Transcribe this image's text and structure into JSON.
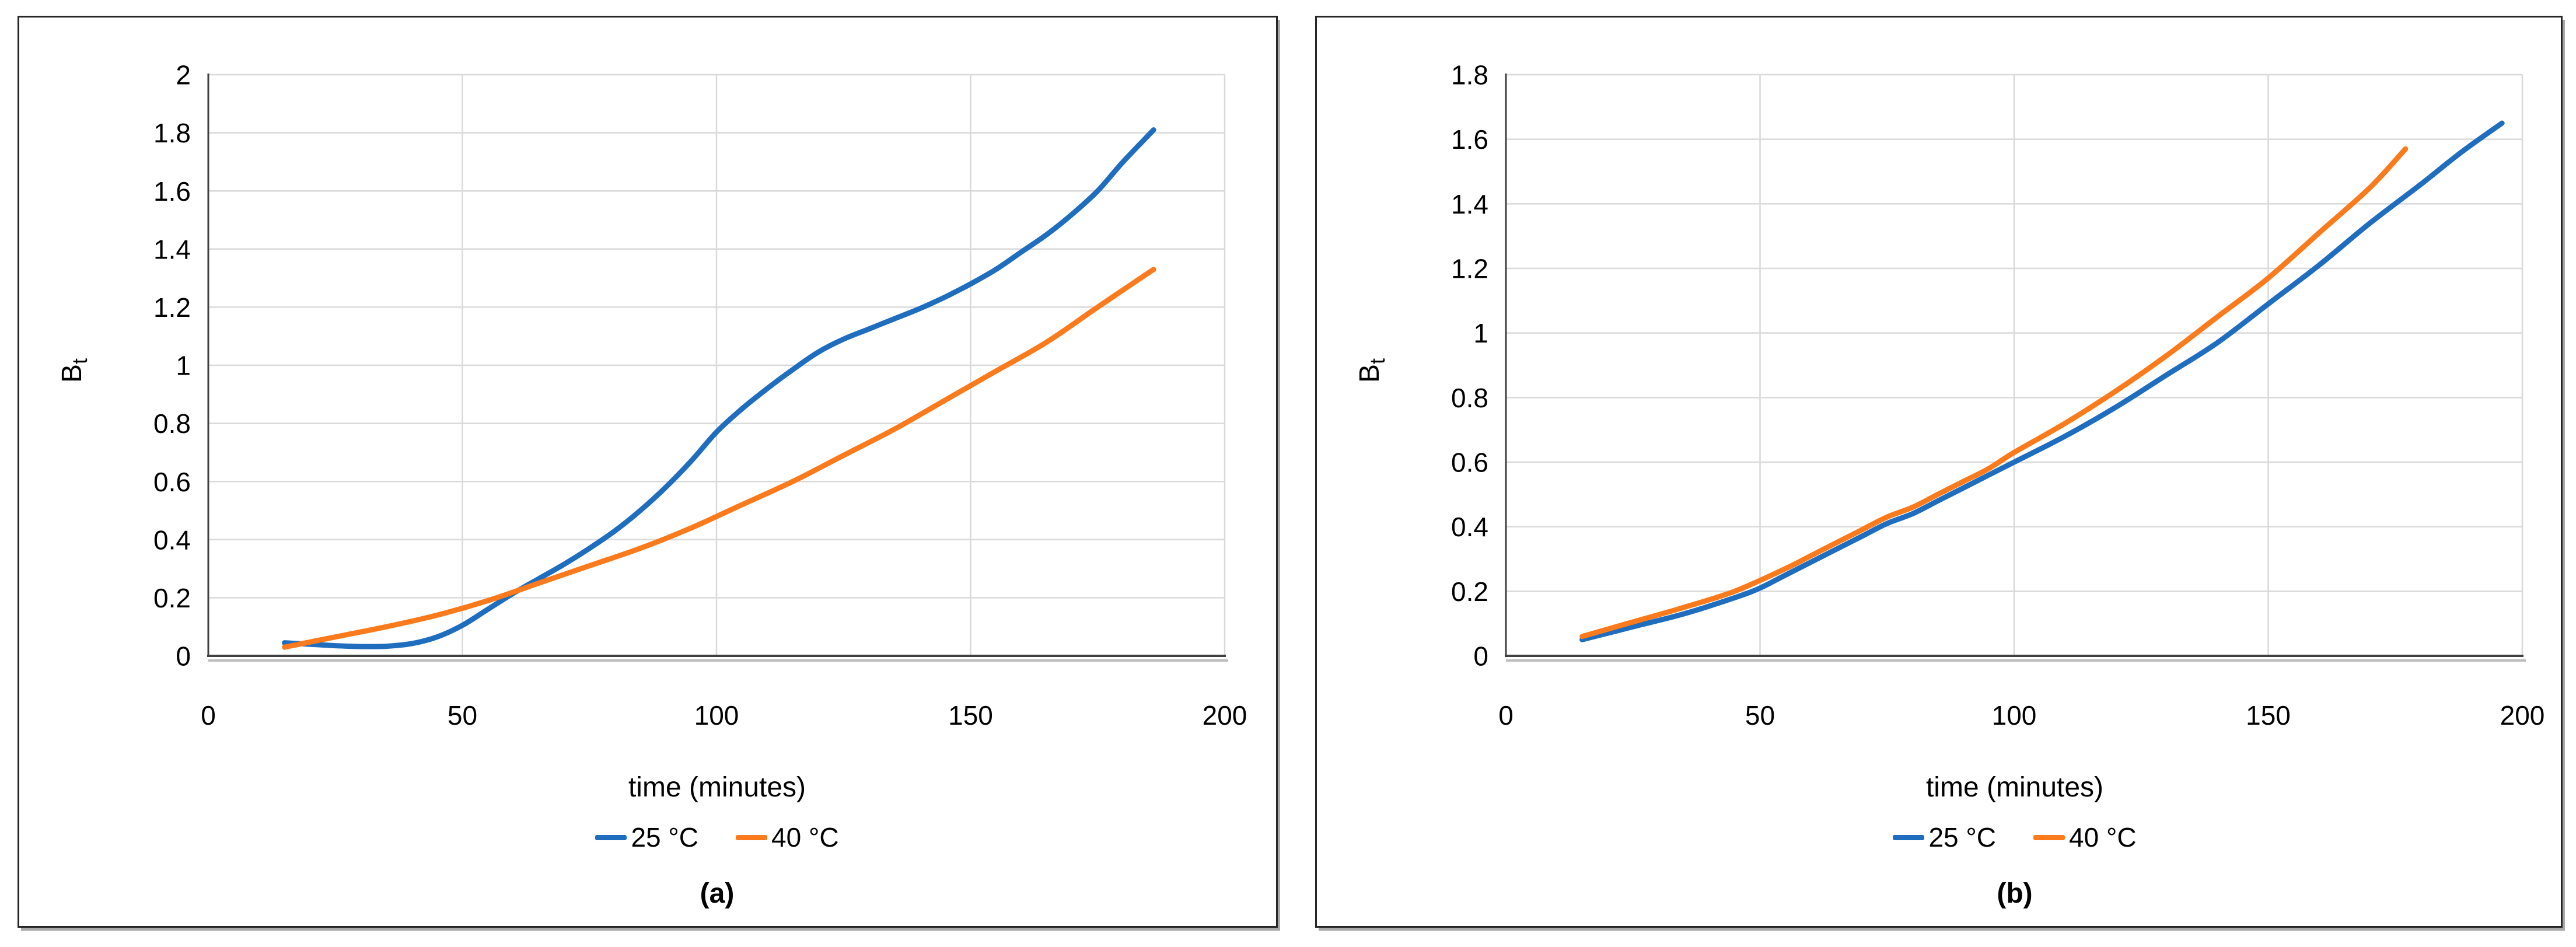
{
  "figure": {
    "background": "#ffffff",
    "panel_border_color": "#262626",
    "gridline_color": "#d9d9d9",
    "axis_color": "#404040",
    "axis_shadow_color": "#bdbdbd",
    "series_blue": "#1e6dbf",
    "series_orange": "#fa7a1c"
  },
  "chart_data": [
    {
      "type": "line",
      "panel_label": "(a)",
      "title": "",
      "xlabel": "time (minutes)",
      "ylabel_main": "B",
      "ylabel_sub": "t",
      "xlim": [
        0,
        200
      ],
      "ylim": [
        0,
        2
      ],
      "x_ticks": [
        0,
        50,
        100,
        150,
        200
      ],
      "y_ticks": [
        0,
        0.2,
        0.4,
        0.6,
        0.8,
        1,
        1.2,
        1.4,
        1.6,
        1.8,
        2
      ],
      "grid": true,
      "legend_position": "bottom",
      "series": [
        {
          "name": "25 °C",
          "color": "#1e6dbf",
          "points": [
            [
              15,
              0.045
            ],
            [
              20,
              0.04
            ],
            [
              25,
              0.035
            ],
            [
              30,
              0.032
            ],
            [
              35,
              0.033
            ],
            [
              40,
              0.042
            ],
            [
              45,
              0.065
            ],
            [
              50,
              0.105
            ],
            [
              55,
              0.16
            ],
            [
              60,
              0.215
            ],
            [
              65,
              0.265
            ],
            [
              70,
              0.315
            ],
            [
              75,
              0.37
            ],
            [
              80,
              0.43
            ],
            [
              85,
              0.5
            ],
            [
              90,
              0.58
            ],
            [
              95,
              0.67
            ],
            [
              100,
              0.77
            ],
            [
              105,
              0.85
            ],
            [
              110,
              0.92
            ],
            [
              115,
              0.985
            ],
            [
              120,
              1.045
            ],
            [
              125,
              1.09
            ],
            [
              130,
              1.125
            ],
            [
              135,
              1.16
            ],
            [
              140,
              1.195
            ],
            [
              145,
              1.235
            ],
            [
              150,
              1.28
            ],
            [
              155,
              1.33
            ],
            [
              160,
              1.39
            ],
            [
              165,
              1.45
            ],
            [
              170,
              1.52
            ],
            [
              175,
              1.6
            ],
            [
              180,
              1.7
            ],
            [
              186,
              1.81
            ]
          ]
        },
        {
          "name": "40 °C",
          "color": "#fa7a1c",
          "points": [
            [
              15,
              0.03
            ],
            [
              25,
              0.065
            ],
            [
              35,
              0.1
            ],
            [
              45,
              0.14
            ],
            [
              55,
              0.19
            ],
            [
              65,
              0.25
            ],
            [
              75,
              0.31
            ],
            [
              85,
              0.37
            ],
            [
              95,
              0.44
            ],
            [
              105,
              0.52
            ],
            [
              115,
              0.6
            ],
            [
              125,
              0.69
            ],
            [
              135,
              0.78
            ],
            [
              145,
              0.88
            ],
            [
              155,
              0.98
            ],
            [
              165,
              1.08
            ],
            [
              175,
              1.2
            ],
            [
              186,
              1.33
            ]
          ]
        }
      ]
    },
    {
      "type": "line",
      "panel_label": "(b)",
      "title": "",
      "xlabel": "time (minutes)",
      "ylabel_main": "B",
      "ylabel_sub": "t",
      "xlim": [
        0,
        200
      ],
      "ylim": [
        0,
        1.8
      ],
      "x_ticks": [
        0,
        50,
        100,
        150,
        200
      ],
      "y_ticks": [
        0,
        0.2,
        0.4,
        0.6,
        0.8,
        1,
        1.2,
        1.4,
        1.6,
        1.8
      ],
      "grid": true,
      "legend_position": "bottom",
      "series": [
        {
          "name": "25 °C",
          "color": "#1e6dbf",
          "points": [
            [
              15,
              0.05
            ],
            [
              25,
              0.09
            ],
            [
              35,
              0.13
            ],
            [
              45,
              0.18
            ],
            [
              50,
              0.21
            ],
            [
              55,
              0.25
            ],
            [
              60,
              0.29
            ],
            [
              65,
              0.33
            ],
            [
              70,
              0.37
            ],
            [
              75,
              0.41
            ],
            [
              80,
              0.44
            ],
            [
              85,
              0.48
            ],
            [
              90,
              0.52
            ],
            [
              95,
              0.56
            ],
            [
              100,
              0.6
            ],
            [
              110,
              0.68
            ],
            [
              120,
              0.77
            ],
            [
              130,
              0.87
            ],
            [
              140,
              0.97
            ],
            [
              150,
              1.09
            ],
            [
              160,
              1.21
            ],
            [
              170,
              1.34
            ],
            [
              180,
              1.46
            ],
            [
              188,
              1.56
            ],
            [
              196,
              1.65
            ]
          ]
        },
        {
          "name": "40 °C",
          "color": "#fa7a1c",
          "points": [
            [
              15,
              0.06
            ],
            [
              25,
              0.105
            ],
            [
              35,
              0.15
            ],
            [
              45,
              0.2
            ],
            [
              55,
              0.27
            ],
            [
              60,
              0.31
            ],
            [
              65,
              0.35
            ],
            [
              70,
              0.39
            ],
            [
              75,
              0.43
            ],
            [
              80,
              0.46
            ],
            [
              85,
              0.5
            ],
            [
              90,
              0.54
            ],
            [
              95,
              0.58
            ],
            [
              100,
              0.63
            ],
            [
              110,
              0.72
            ],
            [
              120,
              0.82
            ],
            [
              130,
              0.93
            ],
            [
              140,
              1.05
            ],
            [
              150,
              1.17
            ],
            [
              160,
              1.31
            ],
            [
              170,
              1.45
            ],
            [
              177,
              1.57
            ]
          ]
        }
      ]
    }
  ]
}
